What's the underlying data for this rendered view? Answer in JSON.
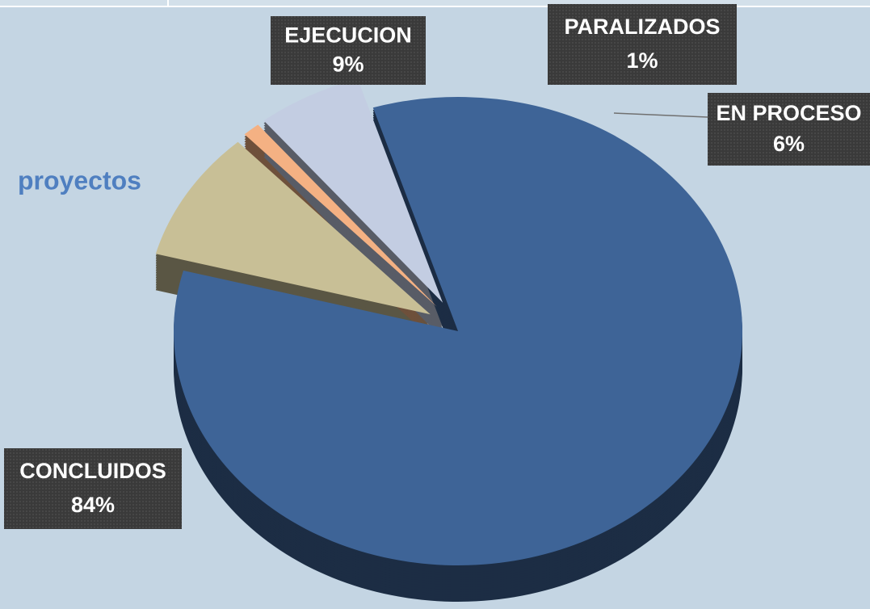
{
  "chart_data": {
    "type": "pie3d",
    "title": "proyectos",
    "categories": [
      "EJECUCION",
      "PARALIZADOS",
      "EN PROCESO",
      "CONCLUIDOS"
    ],
    "values": [
      9,
      1,
      6,
      84
    ],
    "value_labels": [
      "9%",
      "1%",
      "6%",
      "84%"
    ],
    "colors": [
      "#c8bf96",
      "#f4b183",
      "#c3cde2",
      "#3e6497"
    ]
  }
}
